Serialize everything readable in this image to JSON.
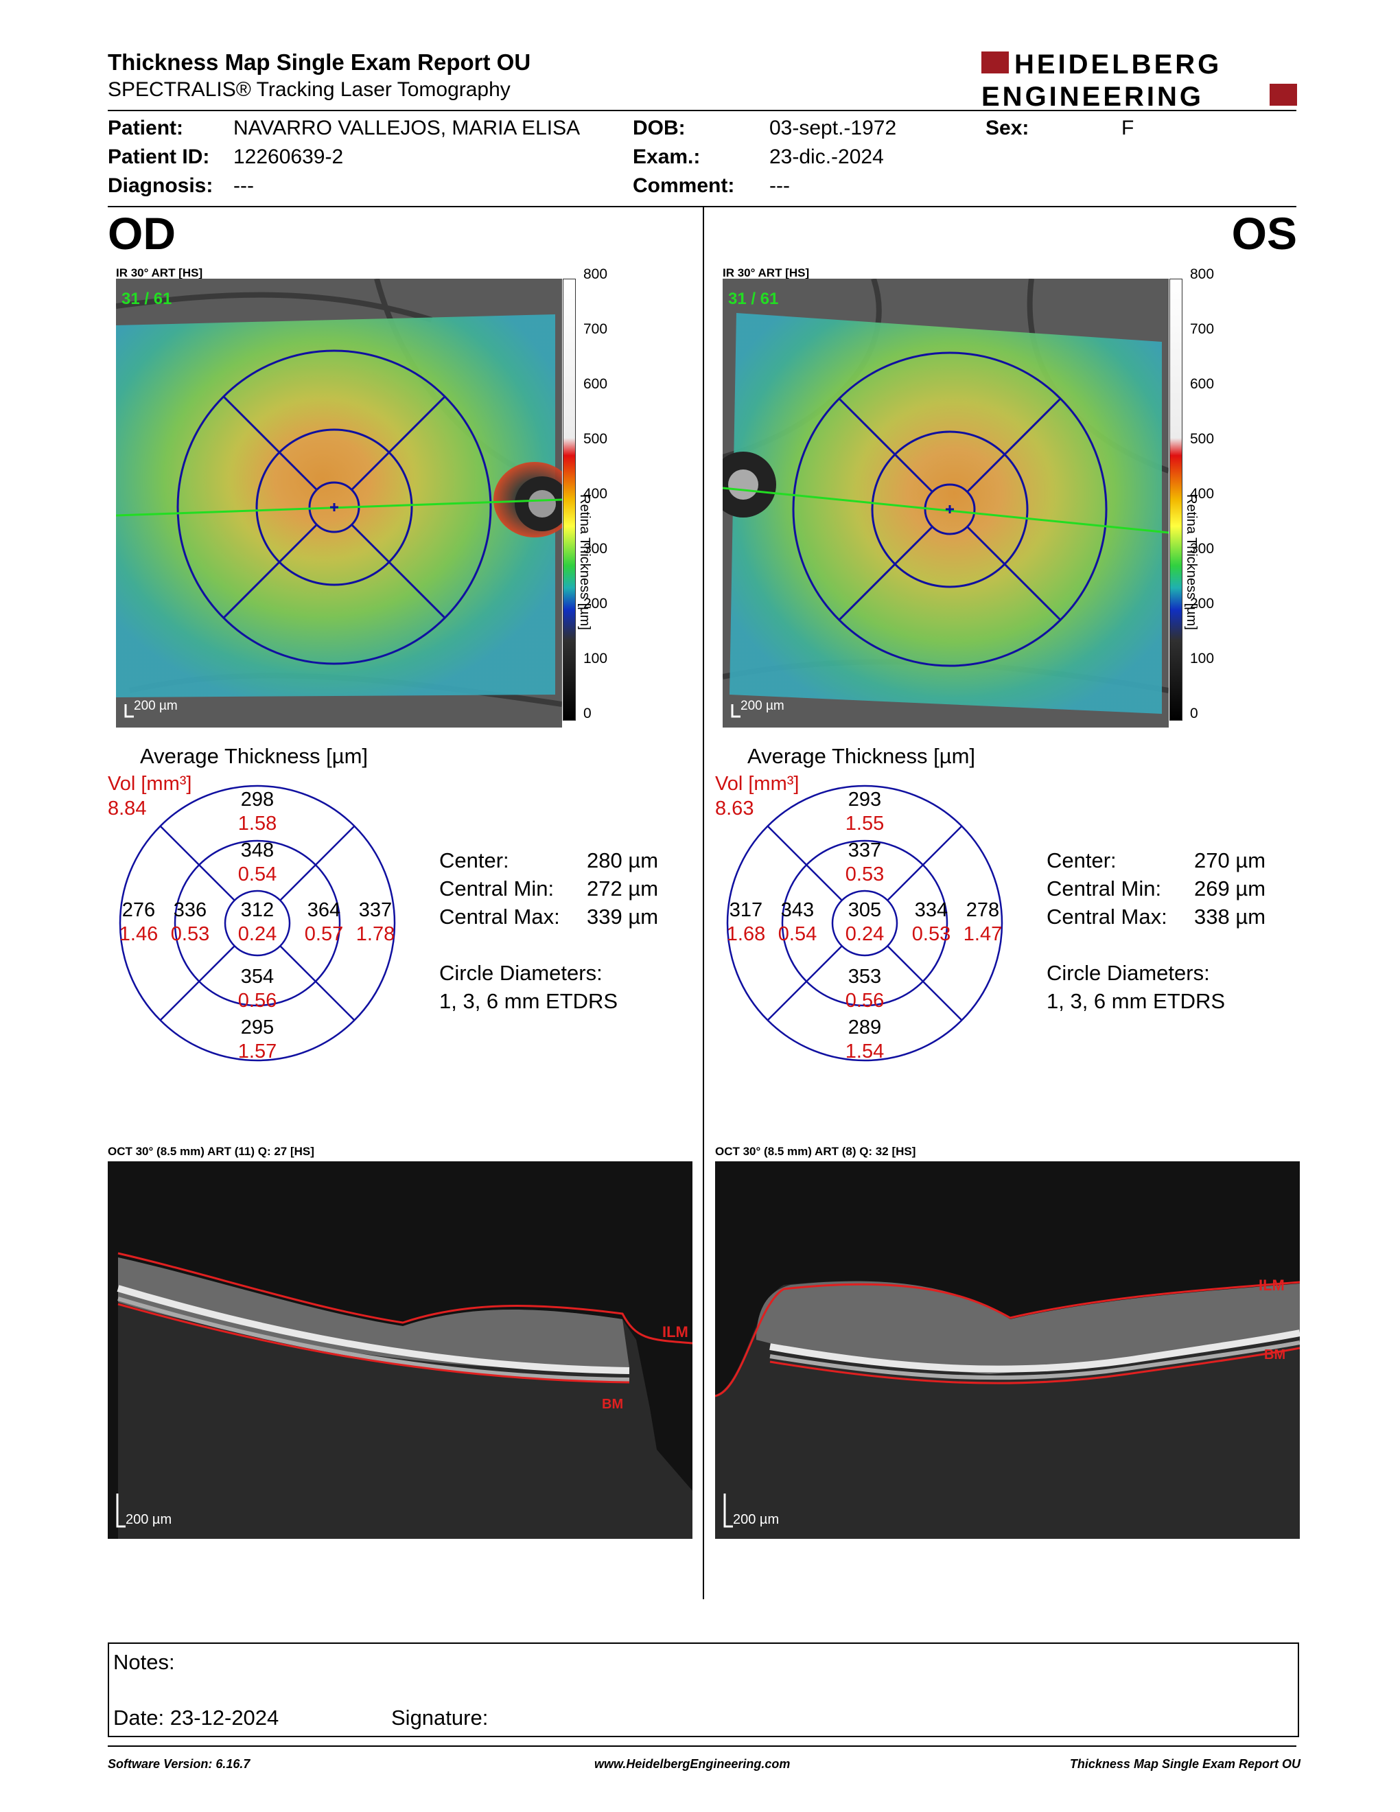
{
  "report": {
    "title": "Thickness Map Single Exam Report OU",
    "subtitle": "SPECTRALIS® Tracking Laser Tomography",
    "logo_line1": "HEIDELBERG",
    "logo_line2": "ENGINEERING"
  },
  "patient": {
    "patient_label": "Patient:",
    "patient_value": "NAVARRO VALLEJOS, MARIA ELISA",
    "id_label": "Patient ID:",
    "id_value": "12260639-2",
    "diagnosis_label": "Diagnosis:",
    "diagnosis_value": "---",
    "dob_label": "DOB:",
    "dob_value": "03-sept.-1972",
    "exam_label": "Exam.:",
    "exam_value": "23-dic.-2024",
    "comment_label": "Comment:",
    "comment_value": "---",
    "sex_label": "Sex:",
    "sex_value": "F"
  },
  "colorbar": {
    "ticks": [
      "800",
      "700",
      "600",
      "500",
      "400",
      "300",
      "200",
      "100",
      "0"
    ],
    "label": "Retina Thickness [µm]"
  },
  "scale_text": "200 µm",
  "thickness_title": "Average Thickness [µm]",
  "vol_label": "Vol [mm³]",
  "stats_labels": {
    "center": "Center:",
    "cmin": "Central Min:",
    "cmax": "Central Max:",
    "circle": "Circle Diameters:",
    "circle_value": "1, 3, 6 mm ETDRS"
  },
  "od": {
    "eye": "OD",
    "ir_caption": "IR 30° ART [HS]",
    "frame": "31 / 61",
    "vol": "8.84",
    "sectors": {
      "outer_top": [
        "298",
        "1.58"
      ],
      "inner_top": [
        "348",
        "0.54"
      ],
      "outer_left": [
        "276",
        "1.46"
      ],
      "inner_left": [
        "336",
        "0.53"
      ],
      "center": [
        "312",
        "0.24"
      ],
      "inner_right": [
        "364",
        "0.57"
      ],
      "outer_right": [
        "337",
        "1.78"
      ],
      "inner_bottom": [
        "354",
        "0.56"
      ],
      "outer_bottom": [
        "295",
        "1.57"
      ]
    },
    "center_val": "280 µm",
    "cmin_val": "272 µm",
    "cmax_val": "339 µm",
    "oct_caption": "OCT 30° (8.5 mm) ART (11) Q: 27 [HS]",
    "ilm": "ILM",
    "bm": "BM"
  },
  "os": {
    "eye": "OS",
    "ir_caption": "IR 30° ART [HS]",
    "frame": "31 / 61",
    "vol": "8.63",
    "sectors": {
      "outer_top": [
        "293",
        "1.55"
      ],
      "inner_top": [
        "337",
        "0.53"
      ],
      "outer_left": [
        "317",
        "1.68"
      ],
      "inner_left": [
        "343",
        "0.54"
      ],
      "center": [
        "305",
        "0.24"
      ],
      "inner_right": [
        "334",
        "0.53"
      ],
      "outer_right": [
        "278",
        "1.47"
      ],
      "inner_bottom": [
        "353",
        "0.56"
      ],
      "outer_bottom": [
        "289",
        "1.54"
      ]
    },
    "center_val": "270 µm",
    "cmin_val": "269 µm",
    "cmax_val": "338 µm",
    "oct_caption": "OCT 30° (8.5 mm) ART (8) Q: 32 [HS]",
    "ilm": "ILM",
    "bm": "BM"
  },
  "notes": {
    "label": "Notes:",
    "date": "Date: 23-12-2024",
    "signature": "Signature:"
  },
  "footer": {
    "software": "Software Version: 6.16.7",
    "website": "www.HeidelbergEngineering.com",
    "report": "Thickness Map Single Exam Report OU"
  },
  "colors": {
    "brand_red": "#9e1b22",
    "grid_blue": "#1010a0",
    "value_red": "#d01010",
    "line_green": "#22dd22"
  }
}
